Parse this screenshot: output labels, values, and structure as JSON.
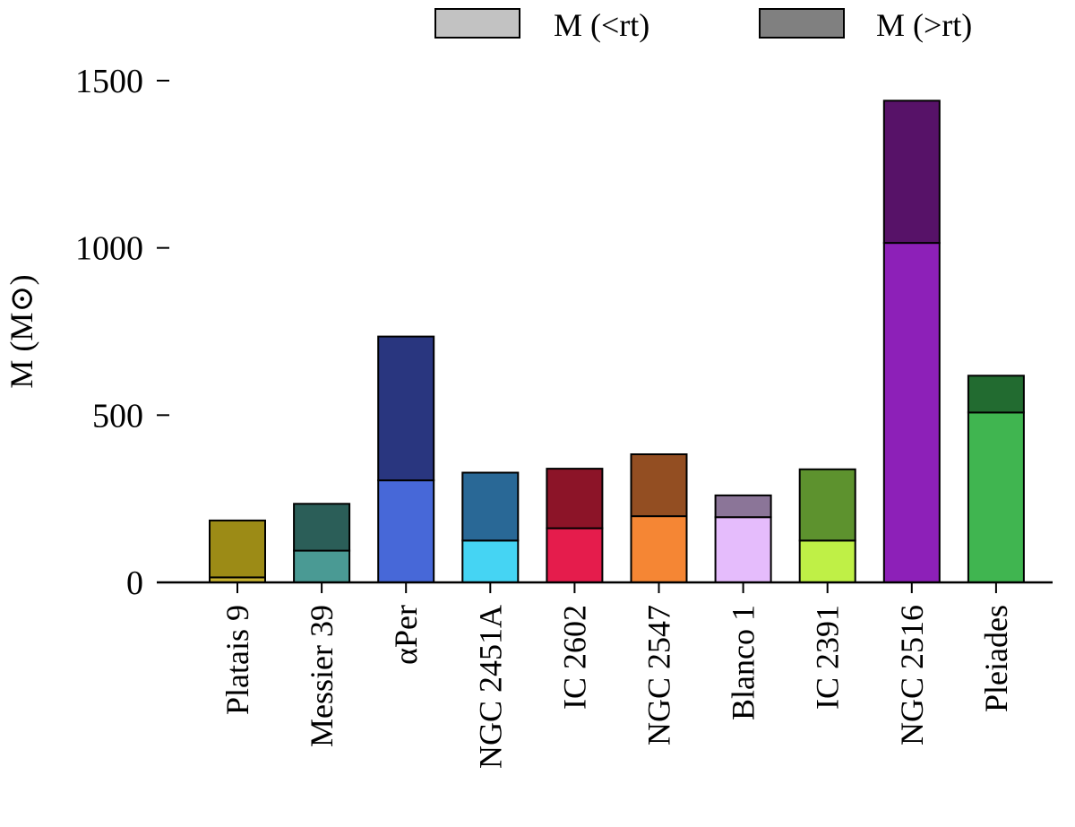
{
  "chart_data": {
    "type": "bar",
    "stacked": true,
    "title": "",
    "xlabel": "",
    "ylabel": "M (M⊙)",
    "ylim": [
      0,
      1500
    ],
    "yticks": [
      0,
      500,
      1000,
      1500
    ],
    "grid": false,
    "legend_placement": "top-right",
    "categories": [
      "Platais 9",
      "Messier 39",
      "αPer",
      "NGC 2451A",
      "IC 2602",
      "NGC 2547",
      "Blanco 1",
      "IC 2391",
      "NGC 2516",
      "Pleiades"
    ],
    "series": [
      {
        "name": "M (<rt)",
        "legend_color": "#c2c2c2",
        "values": [
          15,
          95,
          305,
          125,
          162,
          198,
          195,
          125,
          1015,
          508
        ],
        "colors": [
          "#c9b433",
          "#4a9a94",
          "#4768d8",
          "#45d4f3",
          "#e51c4c",
          "#f58634",
          "#e5bcfc",
          "#bff046",
          "#8d20b8",
          "#40b550"
        ]
      },
      {
        "name": "M (>rt)",
        "legend_color": "#808080",
        "values": [
          170,
          140,
          430,
          203,
          178,
          185,
          65,
          213,
          425,
          110
        ],
        "colors": [
          "#9c8b16",
          "#2b5e58",
          "#29367f",
          "#296896",
          "#8c1428",
          "#934e22",
          "#8b7598",
          "#5d922e",
          "#571268",
          "#226b30"
        ]
      }
    ]
  }
}
